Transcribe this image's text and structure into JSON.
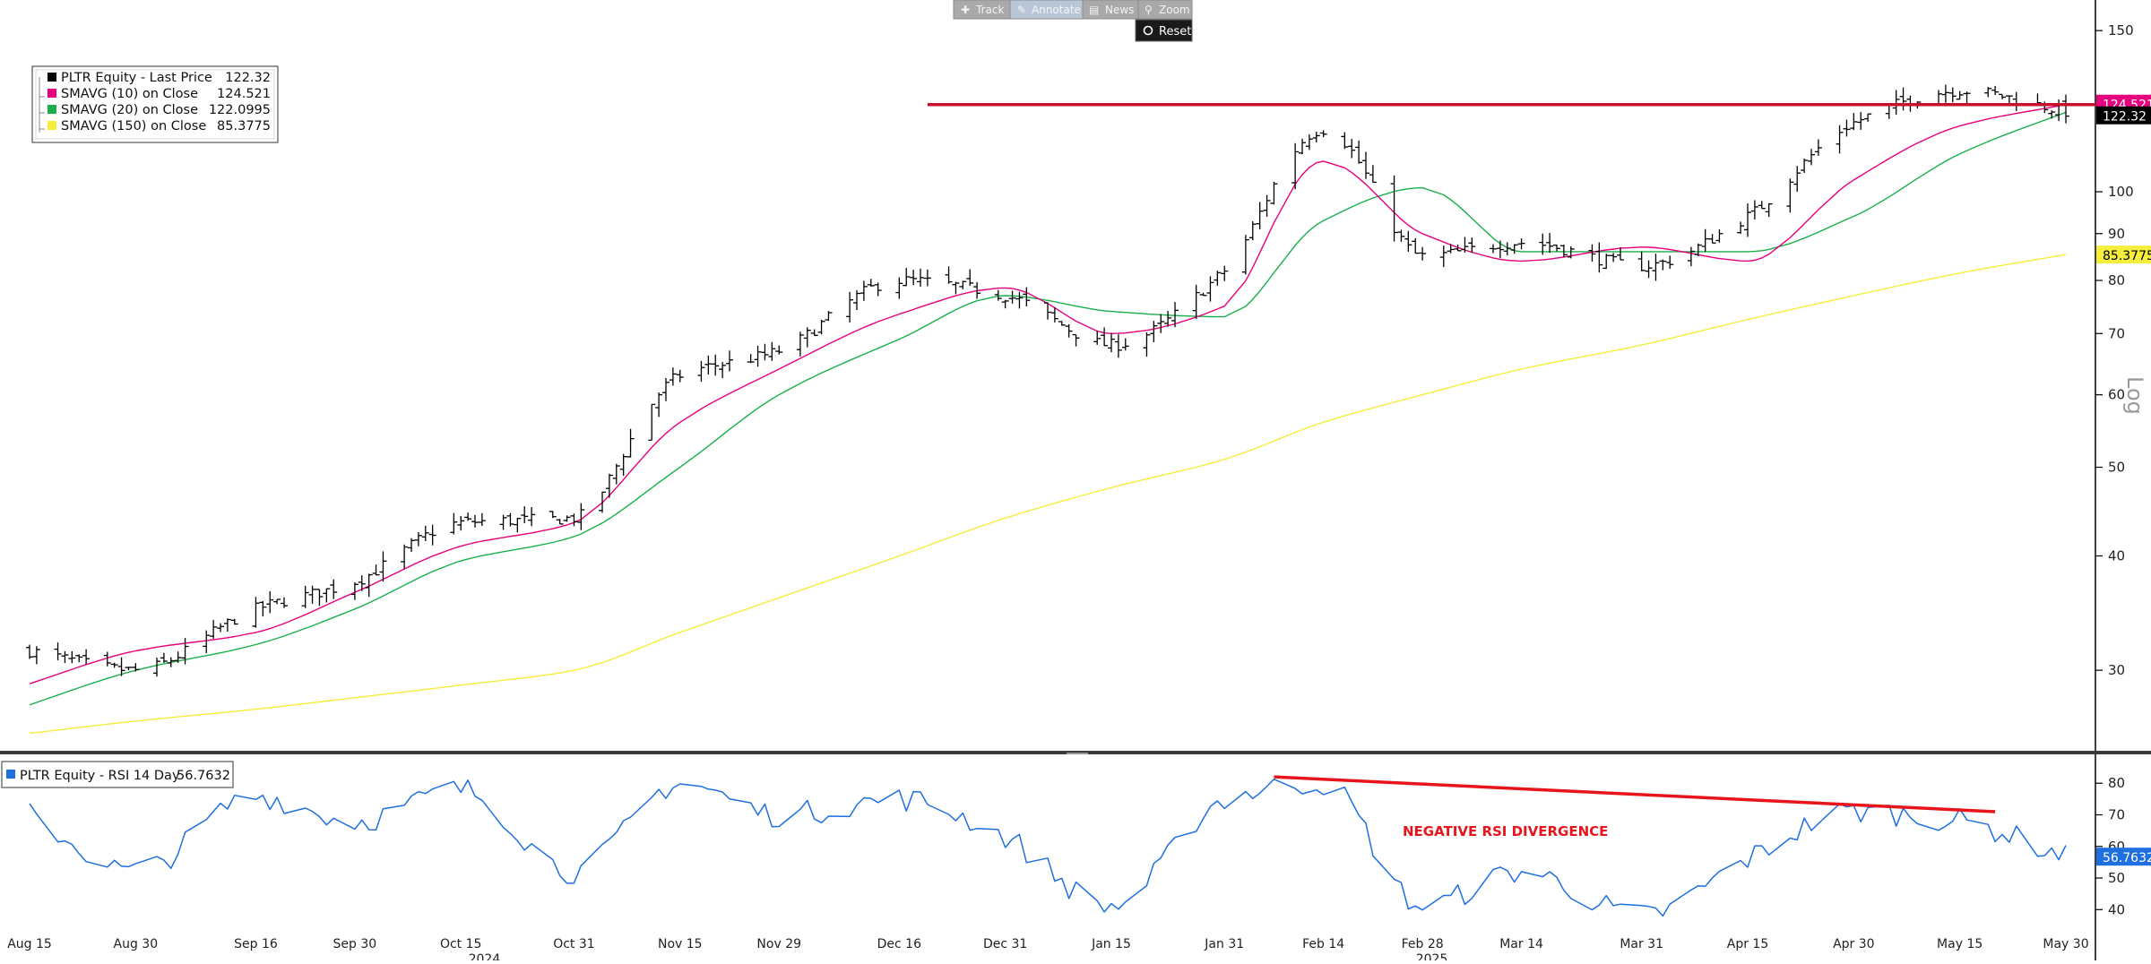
{
  "toolbar": {
    "buttons": [
      {
        "label": "Track",
        "icon": "plus-icon",
        "active": false
      },
      {
        "label": "Annotate",
        "icon": "pencil-icon",
        "active": true
      },
      {
        "label": "News",
        "icon": "news-icon",
        "active": false
      },
      {
        "label": "Zoom",
        "icon": "magnifier-icon",
        "active": false
      }
    ],
    "reset_label": "Reset"
  },
  "price_legend": {
    "rows": [
      {
        "label": "PLTR Equity - Last Price",
        "value": "122.32",
        "color": "#000000"
      },
      {
        "label": "SMAVG (10)  on Close",
        "value": "124.521",
        "color": "#e6007e"
      },
      {
        "label": "SMAVG (20)  on Close",
        "value": "122.0995",
        "color": "#19b04b"
      },
      {
        "label": "SMAVG (150)  on Close",
        "value": "85.3775",
        "color": "#f5ee3d"
      }
    ]
  },
  "rsi_legend": {
    "label": "PLTR Equity - RSI 14 Day",
    "value": "56.7632",
    "color": "#1f6fe0"
  },
  "price_axis": {
    "scale": "log",
    "scale_label": "Log",
    "ticks": [
      "150",
      "100",
      "90",
      "80",
      "70",
      "60",
      "50",
      "40",
      "30"
    ],
    "tick_values": [
      150,
      100,
      90,
      80,
      70,
      60,
      50,
      40,
      30
    ],
    "ylim": [
      24.5,
      162
    ],
    "badges": [
      {
        "text": "124.521",
        "value": 124.8,
        "bg": "#e6007e",
        "fg": "#ffffff"
      },
      {
        "text": "122.32",
        "value": 121.2,
        "bg": "#000000",
        "fg": "#ffffff"
      },
      {
        "text": "85.3775",
        "value": 85.3775,
        "bg": "#f5ee3d",
        "fg": "#000000"
      }
    ]
  },
  "rsi_axis": {
    "ticks": [
      "80",
      "70",
      "60",
      "50",
      "40"
    ],
    "tick_values": [
      80,
      70,
      60,
      50,
      40
    ],
    "ylim": [
      33,
      88
    ],
    "badge": {
      "text": "56.7632",
      "value": 56.7632,
      "bg": "#1f6fe0",
      "fg": "#ffffff"
    }
  },
  "x_axis": {
    "labels": [
      {
        "text": "Aug 15",
        "date": "2024-08-15"
      },
      {
        "text": "Aug 30",
        "date": "2024-08-30"
      },
      {
        "text": "Sep 16",
        "date": "2024-09-16"
      },
      {
        "text": "Sep 30",
        "date": "2024-09-30"
      },
      {
        "text": "Oct 15",
        "date": "2024-10-15"
      },
      {
        "text": "Oct 31",
        "date": "2024-10-31"
      },
      {
        "text": "Nov 15",
        "date": "2024-11-15"
      },
      {
        "text": "Nov 29",
        "date": "2024-11-29"
      },
      {
        "text": "Dec 16",
        "date": "2024-12-16"
      },
      {
        "text": "Dec 31",
        "date": "2024-12-31"
      },
      {
        "text": "Jan 15",
        "date": "2025-01-15"
      },
      {
        "text": "Jan 31",
        "date": "2025-01-31"
      },
      {
        "text": "Feb 14",
        "date": "2025-02-14"
      },
      {
        "text": "Feb 28",
        "date": "2025-02-28"
      },
      {
        "text": "Mar 14",
        "date": "2025-03-14"
      },
      {
        "text": "Mar 31",
        "date": "2025-03-31"
      },
      {
        "text": "Apr 15",
        "date": "2025-04-15"
      },
      {
        "text": "Apr 30",
        "date": "2025-04-30"
      },
      {
        "text": "May 15",
        "date": "2025-05-15"
      },
      {
        "text": "May 30",
        "date": "2025-05-30"
      }
    ],
    "years": [
      {
        "text": "2024",
        "date": "2024-10-31"
      },
      {
        "text": "2025",
        "date": "2025-03-14"
      }
    ]
  },
  "annotation": {
    "text": "NEGATIVE RSI DIVERGENCE",
    "text_color": "#e8141b",
    "resistance_level": 124.5,
    "resistance_start": "2024-12-20",
    "resistance_color": "#c8102e",
    "rsi_trend_start": {
      "date": "2025-02-07",
      "value": 82
    },
    "rsi_trend_end": {
      "date": "2025-05-20",
      "value": 71
    },
    "rsi_trend_color": "#e8141b"
  },
  "chart_data": {
    "type": "line",
    "subtype": "ohlc-bars with moving averages and RSI panel",
    "y_scale": "log",
    "x": [
      "2024-08-15",
      "2024-08-30",
      "2024-09-16",
      "2024-09-30",
      "2024-10-15",
      "2024-10-31",
      "2024-11-15",
      "2024-11-29",
      "2024-12-16",
      "2024-12-31",
      "2025-01-15",
      "2025-01-31",
      "2025-02-14",
      "2025-02-28",
      "2025-03-14",
      "2025-03-31",
      "2025-04-15",
      "2025-04-30",
      "2025-05-15",
      "2025-05-30"
    ],
    "series": [
      {
        "name": "PLTR Equity - Last Price",
        "color": "#000000",
        "values": [
          31.5,
          30.0,
          35.0,
          37.5,
          43.5,
          44.0,
          63.0,
          67.0,
          80.0,
          77.0,
          68.0,
          82.0,
          117.0,
          85.0,
          88.0,
          83.0,
          94.0,
          119.0,
          129.0,
          122.32
        ]
      },
      {
        "name": "SMAVG (10)  on Close",
        "color": "#e6007e",
        "values": [
          29.0,
          31.5,
          33.0,
          36.5,
          41.0,
          43.5,
          56.0,
          64.0,
          73.5,
          78.5,
          70.0,
          75.0,
          108.0,
          90.0,
          84.0,
          87.0,
          84.0,
          103.0,
          118.0,
          124.521
        ]
      },
      {
        "name": "SMAVG (20)  on Close",
        "color": "#19b04b",
        "values": [
          27.5,
          30.0,
          32.0,
          35.0,
          39.5,
          42.0,
          50.0,
          60.0,
          69.0,
          77.0,
          74.0,
          73.0,
          93.0,
          101.0,
          86.0,
          86.0,
          86.0,
          94.0,
          110.0,
          122.0995
        ]
      },
      {
        "name": "SMAVG (150)  on Close",
        "color": "#f5ee3d",
        "values": [
          25.6,
          26.4,
          27.2,
          28.0,
          28.9,
          30.0,
          33.0,
          36.0,
          40.0,
          44.0,
          47.5,
          51.0,
          56.0,
          60.0,
          64.0,
          68.0,
          72.5,
          77.0,
          81.5,
          85.3775
        ]
      },
      {
        "name": "PLTR Equity - RSI 14 Day",
        "color": "#1f6fe0",
        "values": [
          70.0,
          52.0,
          76.0,
          68.0,
          78.0,
          52.0,
          80.0,
          70.0,
          75.0,
          63.0,
          41.0,
          75.0,
          80.0,
          41.0,
          52.0,
          38.0,
          56.0,
          71.0,
          68.0,
          56.7632
        ]
      }
    ]
  }
}
